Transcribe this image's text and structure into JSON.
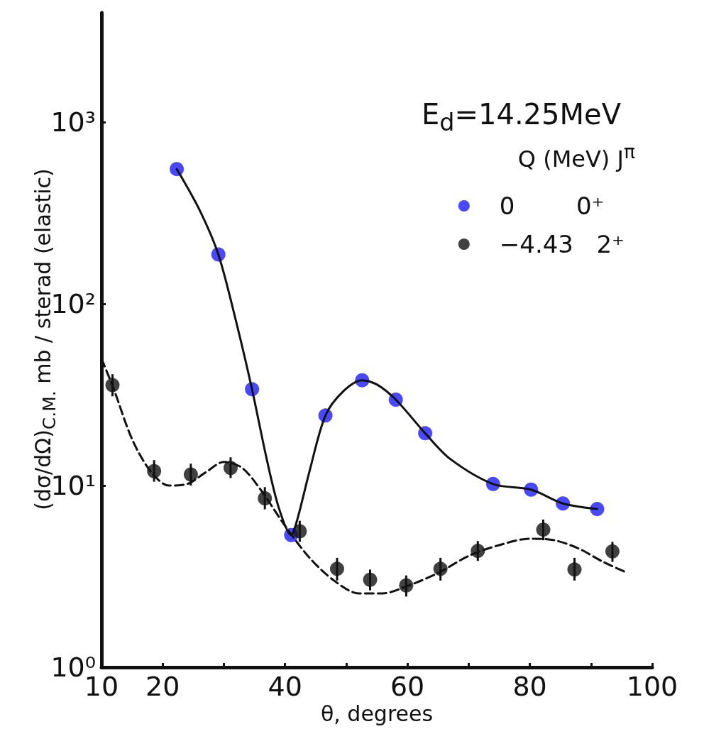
{
  "chart_data": {
    "type": "scatter",
    "xlabel": "θ, degrees",
    "ylabel": "(dσ/dΩ)$_{C.M.}$ mb / sterad (elastic)",
    "log": "y",
    "grid": false,
    "legend": "top right",
    "legend_title": "Q (MeV)  J$^{π}$",
    "annotations": [
      "E$_{d}$=14.25MeV"
    ],
    "xlim": [
      10,
      100
    ],
    "xticks": [
      10,
      20,
      {
        "value": 30,
        "label": null
      },
      40,
      {
        "value": 50,
        "label": null
      },
      60,
      {
        "value": 70,
        "label": null
      },
      80,
      {
        "value": 90,
        "label": null
      },
      100
    ],
    "ylim": [
      1,
      4000
    ],
    "yticks": [
      {
        "value": 1,
        "label": "10⁰"
      },
      {
        "value": 10,
        "label": "10¹"
      },
      {
        "value": 100,
        "label": "10²"
      },
      {
        "value": 1000,
        "label": "10³"
      }
    ],
    "series": [
      {
        "name": "0        0⁺",
        "marker": "circle",
        "color": "#1a1aff",
        "x": [
          22.3,
          29.1,
          34.6,
          41.0,
          46.6,
          52.6,
          58.1,
          62.9,
          74.0,
          80.2,
          85.4,
          91.0
        ],
        "values": [
          552,
          187,
          33.9,
          5.34,
          24.3,
          38.0,
          29.7,
          19.4,
          10.2,
          9.5,
          7.97,
          7.43
        ]
      },
      {
        "name": "−4.43   2⁺",
        "marker": "circle",
        "color": "#111111",
        "x": [
          11.8,
          18.6,
          24.6,
          31.1,
          36.7,
          42.4,
          48.5,
          53.9,
          59.8,
          65.4,
          71.5,
          82.2,
          87.3,
          93.5
        ],
        "values": [
          35.7,
          12.0,
          11.5,
          12.5,
          8.5,
          5.6,
          3.48,
          3.03,
          2.82,
          3.48,
          4.37,
          5.72,
          3.45,
          4.34
        ],
        "errors": [
          [
            31,
            41
          ],
          [
            10.5,
            13.8
          ],
          [
            10,
            13.2
          ],
          [
            11,
            14.3
          ],
          [
            7.4,
            9.8
          ],
          [
            4.9,
            6.4
          ],
          [
            3.0,
            4.0
          ],
          [
            2.65,
            3.45
          ],
          [
            2.45,
            3.2
          ],
          [
            3.0,
            4.0
          ],
          [
            3.85,
            4.95
          ],
          [
            5.0,
            6.5
          ],
          [
            3.0,
            4.0
          ],
          [
            3.8,
            4.9
          ]
        ]
      },
      {
        "type": "line",
        "marker": "none",
        "line_style": "solid",
        "color": "#111111",
        "x": [
          22.3,
          26,
          29.1,
          32,
          34.6,
          37,
          39,
          41,
          42,
          44,
          46.6,
          49.5,
          52.6,
          55,
          58.1,
          62.9,
          67,
          74,
          80.2,
          85.4,
          91
        ],
        "values": [
          552,
          330,
          187,
          80,
          33.9,
          14,
          7.5,
          5.34,
          6.5,
          12,
          24.3,
          33,
          38,
          36,
          29.7,
          19.4,
          14,
          10.2,
          9.5,
          7.97,
          7.43
        ]
      },
      {
        "type": "line",
        "marker": "none",
        "line_style": "dashed",
        "color": "#111111",
        "x": [
          10,
          12,
          15,
          18,
          21,
          24,
          27,
          30,
          33,
          36,
          40,
          44,
          48,
          52,
          56,
          60,
          65,
          70,
          75,
          80,
          84,
          88,
          92,
          96
        ],
        "values": [
          50,
          34,
          18,
          12,
          10,
          10.2,
          11.8,
          13.5,
          12.5,
          9.5,
          6,
          4,
          3,
          2.55,
          2.55,
          2.8,
          3.3,
          4.1,
          4.7,
          5.1,
          5,
          4.5,
          3.8,
          3.3
        ]
      }
    ]
  }
}
